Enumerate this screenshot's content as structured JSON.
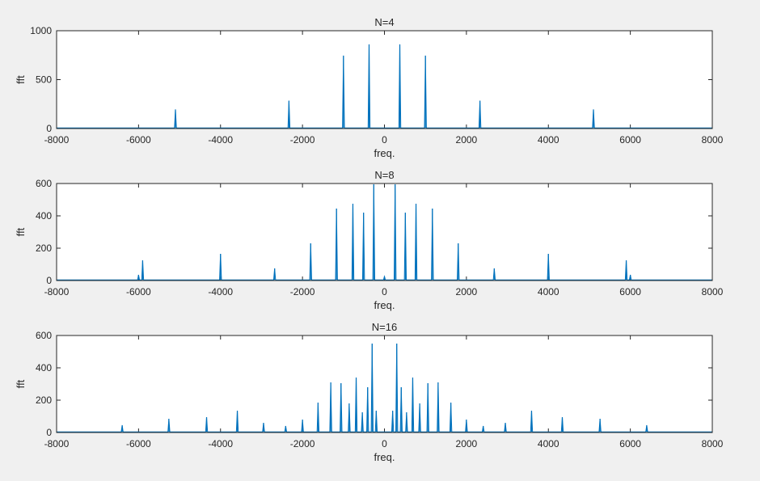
{
  "chart_data": [
    {
      "type": "line",
      "title": "N=4",
      "xlabel": "freq.",
      "ylabel": "fft",
      "xlim": [
        -8000,
        8000
      ],
      "ylim": [
        0,
        1000
      ],
      "xticks": [
        -8000,
        -6000,
        -4000,
        -2000,
        0,
        2000,
        4000,
        6000,
        8000
      ],
      "yticks": [
        0,
        500,
        1000
      ],
      "series": [
        {
          "color": "#0072bd",
          "peaks": [
            {
              "x": -5100,
              "y": 195
            },
            {
              "x": -2330,
              "y": 285
            },
            {
              "x": -1000,
              "y": 745
            },
            {
              "x": -375,
              "y": 860
            },
            {
              "x": 375,
              "y": 860
            },
            {
              "x": 1000,
              "y": 745
            },
            {
              "x": 2330,
              "y": 285
            },
            {
              "x": 5100,
              "y": 195
            }
          ]
        }
      ]
    },
    {
      "type": "line",
      "title": "N=8",
      "xlabel": "freq.",
      "ylabel": "fft",
      "xlim": [
        -8000,
        8000
      ],
      "ylim": [
        0,
        600
      ],
      "xticks": [
        -8000,
        -6000,
        -4000,
        -2000,
        0,
        2000,
        4000,
        6000,
        8000
      ],
      "yticks": [
        0,
        200,
        400,
        600
      ],
      "series": [
        {
          "color": "#0072bd",
          "peaks": [
            {
              "x": -6000,
              "y": 35
            },
            {
              "x": -5900,
              "y": 125
            },
            {
              "x": -4000,
              "y": 165
            },
            {
              "x": -2680,
              "y": 75
            },
            {
              "x": -1800,
              "y": 230
            },
            {
              "x": -1170,
              "y": 445
            },
            {
              "x": -770,
              "y": 475
            },
            {
              "x": -510,
              "y": 420
            },
            {
              "x": -260,
              "y": 595
            },
            {
              "x": 0,
              "y": 25
            },
            {
              "x": 260,
              "y": 595
            },
            {
              "x": 510,
              "y": 420
            },
            {
              "x": 770,
              "y": 475
            },
            {
              "x": 1170,
              "y": 445
            },
            {
              "x": 1800,
              "y": 230
            },
            {
              "x": 2680,
              "y": 75
            },
            {
              "x": 4000,
              "y": 165
            },
            {
              "x": 5900,
              "y": 125
            },
            {
              "x": 6000,
              "y": 35
            }
          ]
        }
      ]
    },
    {
      "type": "line",
      "title": "N=16",
      "xlabel": "freq.",
      "ylabel": "fft",
      "xlim": [
        -8000,
        8000
      ],
      "ylim": [
        0,
        600
      ],
      "xticks": [
        -8000,
        -6000,
        -4000,
        -2000,
        0,
        2000,
        4000,
        6000,
        8000
      ],
      "yticks": [
        0,
        200,
        400,
        600
      ],
      "series": [
        {
          "color": "#0072bd",
          "peaks": [
            {
              "x": -6400,
              "y": 45
            },
            {
              "x": -5260,
              "y": 85
            },
            {
              "x": -4340,
              "y": 95
            },
            {
              "x": -3590,
              "y": 135
            },
            {
              "x": -2950,
              "y": 60
            },
            {
              "x": -2410,
              "y": 40
            },
            {
              "x": -2000,
              "y": 80
            },
            {
              "x": -1620,
              "y": 185
            },
            {
              "x": -1310,
              "y": 310
            },
            {
              "x": -1060,
              "y": 305
            },
            {
              "x": -860,
              "y": 180
            },
            {
              "x": -690,
              "y": 340
            },
            {
              "x": -540,
              "y": 125
            },
            {
              "x": -410,
              "y": 280
            },
            {
              "x": -300,
              "y": 550
            },
            {
              "x": -200,
              "y": 135
            },
            {
              "x": 200,
              "y": 135
            },
            {
              "x": 300,
              "y": 550
            },
            {
              "x": 410,
              "y": 280
            },
            {
              "x": 540,
              "y": 125
            },
            {
              "x": 690,
              "y": 340
            },
            {
              "x": 860,
              "y": 180
            },
            {
              "x": 1060,
              "y": 305
            },
            {
              "x": 1310,
              "y": 310
            },
            {
              "x": 1620,
              "y": 185
            },
            {
              "x": 2000,
              "y": 80
            },
            {
              "x": 2410,
              "y": 40
            },
            {
              "x": 2950,
              "y": 60
            },
            {
              "x": 3590,
              "y": 135
            },
            {
              "x": 4340,
              "y": 95
            },
            {
              "x": 5260,
              "y": 85
            },
            {
              "x": 6400,
              "y": 45
            }
          ]
        }
      ]
    }
  ]
}
